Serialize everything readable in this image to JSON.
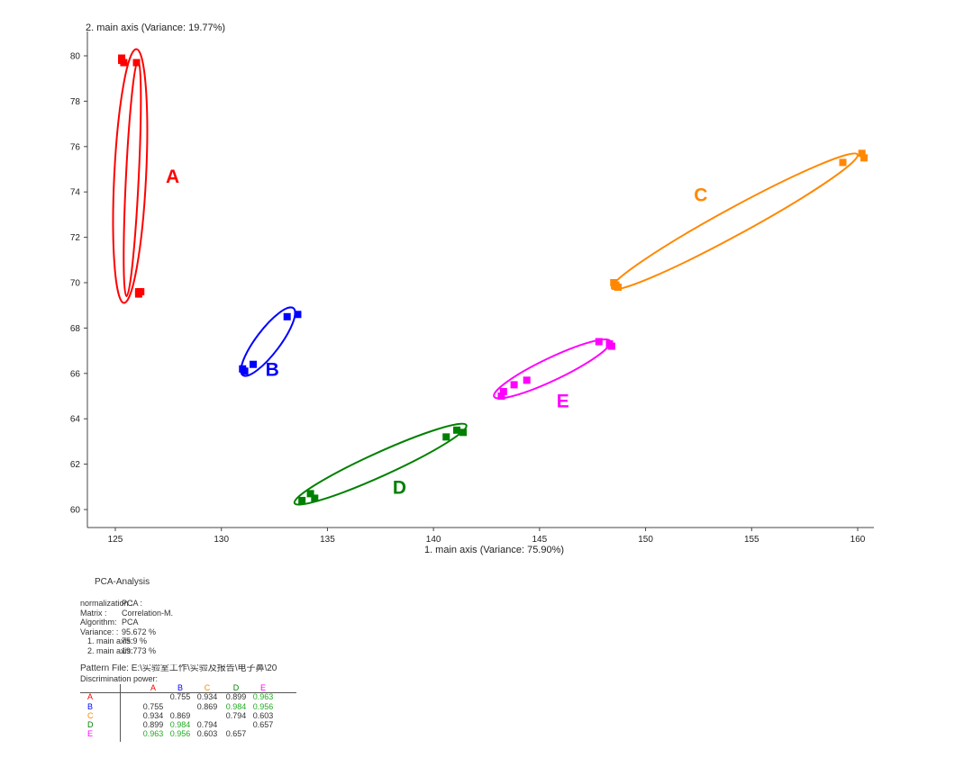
{
  "chart_data": {
    "type": "scatter",
    "title": "",
    "xlabel": "1. main axis (Variance: 75.90%)",
    "ylabel": "2. main axis (Variance: 19.77%)",
    "xlim": [
      122.5,
      163
    ],
    "ylim": [
      59.5,
      81.5
    ],
    "xticks": [
      125,
      130,
      135,
      140,
      145,
      150,
      155,
      160
    ],
    "yticks": [
      60,
      62,
      64,
      66,
      68,
      70,
      72,
      74,
      76,
      78,
      80
    ],
    "grid": false,
    "series": [
      {
        "name": "A",
        "color": "#ff0000",
        "x": [
          125.3,
          125.4,
          125.3,
          126.0,
          126.1,
          126.2,
          126.1
        ],
        "y": [
          79.9,
          79.7,
          79.8,
          79.7,
          69.6,
          69.6,
          69.5
        ]
      },
      {
        "name": "B",
        "color": "#0000ff",
        "x": [
          131.0,
          131.1,
          131.5,
          133.1,
          133.6
        ],
        "y": [
          66.2,
          66.1,
          66.4,
          68.5,
          68.6
        ]
      },
      {
        "name": "C",
        "color": "#ff8800",
        "x": [
          148.5,
          148.7,
          148.6,
          159.3,
          160.2,
          160.3
        ],
        "y": [
          70.0,
          69.8,
          69.9,
          75.3,
          75.7,
          75.5
        ]
      },
      {
        "name": "D",
        "color": "#008000",
        "x": [
          133.8,
          134.2,
          134.4,
          140.6,
          141.1,
          141.4
        ],
        "y": [
          60.4,
          60.7,
          60.5,
          63.2,
          63.5,
          63.4
        ]
      },
      {
        "name": "E",
        "color": "#ff00ff",
        "x": [
          143.2,
          143.3,
          143.8,
          144.4,
          147.8,
          148.3,
          148.4
        ],
        "y": [
          65.0,
          65.2,
          65.5,
          65.7,
          67.4,
          67.3,
          67.2
        ]
      }
    ],
    "ellipses": [
      {
        "group": "A",
        "cx": 125.7,
        "cy": 74.7,
        "rx": 5.6,
        "ry": 0.75,
        "angle": 87
      },
      {
        "group": "A",
        "cx": 125.8,
        "cy": 74.6,
        "rx": 5.2,
        "ry": 0.3,
        "angle": 87
      },
      {
        "group": "B",
        "cx": 132.2,
        "cy": 67.4,
        "rx": 1.9,
        "ry": 0.55,
        "angle": 51
      },
      {
        "group": "C",
        "cx": 154.2,
        "cy": 72.7,
        "rx": 6.5,
        "ry": 0.6,
        "angle": 27
      },
      {
        "group": "D",
        "cx": 137.5,
        "cy": 62.0,
        "rx": 4.4,
        "ry": 0.52,
        "angle": 23
      },
      {
        "group": "E",
        "cx": 145.6,
        "cy": 66.2,
        "rx": 3.0,
        "ry": 0.5,
        "angle": 24
      }
    ],
    "group_labels": [
      {
        "text": "A",
        "x": 127.7,
        "y": 74.4,
        "color": "#ff0000"
      },
      {
        "text": "B",
        "x": 132.4,
        "y": 65.9,
        "color": "#0000ff"
      },
      {
        "text": "C",
        "x": 152.6,
        "y": 73.6,
        "color": "#ff8800"
      },
      {
        "text": "D",
        "x": 138.4,
        "y": 60.7,
        "color": "#008000"
      },
      {
        "text": "E",
        "x": 146.1,
        "y": 64.5,
        "color": "#ff00ff"
      }
    ]
  },
  "info": {
    "heading": "PCA-Analysis",
    "params": [
      {
        "key": "normalization :",
        "value": "PCA   :"
      },
      {
        "key": "Matrix       :",
        "value": "Correlation-M."
      },
      {
        "key": "Algorithm:",
        "value": "PCA"
      },
      {
        "key": "Variance:  :",
        "value": "95.672 %"
      },
      {
        "key": "1. main axis:",
        "value": "75.9 %",
        "sub": true
      },
      {
        "key": "2. main axis:",
        "value": "19.773 %",
        "sub": true
      }
    ],
    "pattern_file": "Pattern File: E:\\实验室工作\\实验及报告\\电子鼻\\20",
    "discrimination_label": "Discrimination power:",
    "groups": [
      {
        "name": "A",
        "color": "#ff0000"
      },
      {
        "name": "B",
        "color": "#0000ff"
      },
      {
        "name": "C",
        "color": "#ff8800"
      },
      {
        "name": "D",
        "color": "#008000"
      },
      {
        "name": "E",
        "color": "#ff00ff"
      }
    ],
    "matrix": [
      [
        "",
        "0.755",
        "0.934",
        "0.899",
        "0.963"
      ],
      [
        "0.755",
        "",
        "0.869",
        "0.984",
        "0.956"
      ],
      [
        "0.934",
        "0.869",
        "",
        "0.794",
        "0.603"
      ],
      [
        "0.899",
        "0.984",
        "0.794",
        "",
        "0.657"
      ],
      [
        "0.963",
        "0.956",
        "0.603",
        "0.657",
        ""
      ]
    ],
    "highlight_color": "#22aa22",
    "normal_color": "#333333"
  }
}
